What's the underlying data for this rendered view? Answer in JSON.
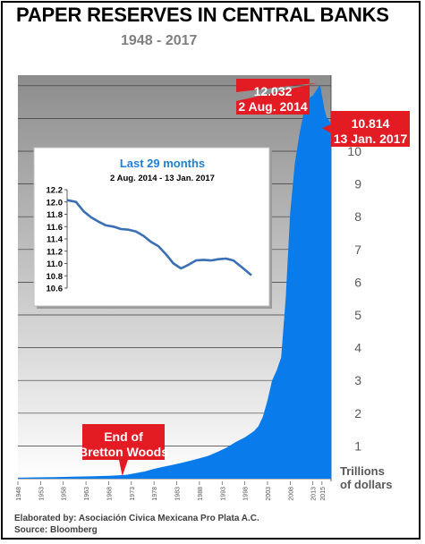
{
  "header": {
    "title": "PAPER RESERVES IN CENTRAL BANKS",
    "years": "1948 - 2017"
  },
  "colors": {
    "area": "#0a7bea",
    "plot_gradient_top": "#8c8c8c",
    "plot_gradient_bottom": "#ffffff",
    "callout": "#e31c24",
    "inset_line": "#3a6fb5",
    "inset_title": "#1f7fd6"
  },
  "chart_data": [
    {
      "type": "area",
      "title": "PAPER RESERVES IN CENTRAL BANKS",
      "subtitle": "1948 - 2017",
      "ylabel": "Trillions of dollars",
      "ylabel_lines": [
        "Trillions",
        "of dollars"
      ],
      "xlim": [
        1948,
        2017
      ],
      "ylim": [
        0,
        11.6
      ],
      "y_ticks": [
        1,
        2,
        3,
        4,
        5,
        6,
        7,
        8,
        9,
        10
      ],
      "x_ticks": [
        1948,
        1953,
        1958,
        1963,
        1968,
        1973,
        1978,
        1983,
        1988,
        1993,
        1998,
        2003,
        2008,
        2013,
        2015
      ],
      "grid": true,
      "x": [
        1948,
        1952,
        1956,
        1960,
        1964,
        1968,
        1970,
        1972,
        1974,
        1976,
        1978,
        1980,
        1982,
        1984,
        1986,
        1988,
        1990,
        1992,
        1994,
        1996,
        1998,
        2000,
        2001,
        2002,
        2003,
        2004,
        2005,
        2006,
        2007,
        2008,
        2009,
        2010,
        2011,
        2012,
        2013,
        2014.58,
        2015,
        2015.5,
        2016,
        2016.5,
        2017.04
      ],
      "values": [
        0.03,
        0.04,
        0.05,
        0.06,
        0.07,
        0.09,
        0.1,
        0.12,
        0.17,
        0.22,
        0.3,
        0.36,
        0.42,
        0.48,
        0.55,
        0.62,
        0.7,
        0.82,
        0.95,
        1.12,
        1.26,
        1.45,
        1.6,
        1.9,
        2.4,
        3.0,
        3.3,
        3.7,
        5.5,
        8.1,
        9.6,
        10.5,
        11.2,
        11.6,
        11.7,
        12.032,
        11.7,
        11.3,
        11.05,
        10.95,
        10.814
      ],
      "annotations": [
        {
          "lines": [
            "12.032",
            "2 Aug. 2014"
          ],
          "x": 2014.58,
          "y": 12.032
        },
        {
          "lines": [
            "10.814",
            "13 Jan. 2017"
          ],
          "x": 2017.04,
          "y": 10.814
        },
        {
          "lines": [
            "End of",
            "Bretton Woods"
          ],
          "x": 1971,
          "y": 0
        }
      ]
    },
    {
      "type": "line",
      "title": "Last 29 months",
      "subtitle": "2 Aug. 2014 - 13 Jan. 2017",
      "ylim": [
        10.6,
        12.2
      ],
      "y_ticks": [
        10.6,
        10.8,
        11.0,
        11.2,
        11.4,
        11.6,
        11.8,
        12.0,
        12.2
      ],
      "grid": false,
      "x": [
        2014.58,
        2014.7,
        2014.8,
        2014.9,
        2015.0,
        2015.1,
        2015.2,
        2015.3,
        2015.4,
        2015.5,
        2015.6,
        2015.7,
        2015.8,
        2015.9,
        2016.0,
        2016.1,
        2016.2,
        2016.3,
        2016.4,
        2016.5,
        2016.6,
        2016.7,
        2016.8,
        2016.9,
        2017.04
      ],
      "values": [
        12.03,
        12.0,
        11.85,
        11.75,
        11.68,
        11.62,
        11.6,
        11.56,
        11.55,
        11.52,
        11.45,
        11.35,
        11.28,
        11.15,
        11.0,
        10.92,
        10.98,
        11.05,
        11.06,
        11.05,
        11.07,
        11.08,
        11.05,
        10.95,
        10.81
      ]
    }
  ],
  "footer": {
    "elaborated": "Elaborated by:  Asociación Civica Mexicana Pro Plata A.C.",
    "source": "Source: Bloomberg"
  }
}
